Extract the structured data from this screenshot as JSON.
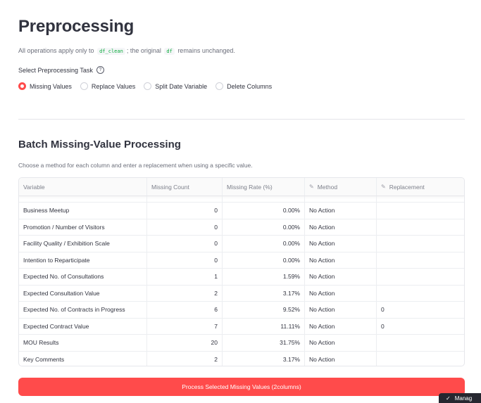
{
  "page": {
    "title": "Preprocessing",
    "caption_prefix": "All operations apply only to",
    "caption_code1": "df_clean",
    "caption_mid": "; the original",
    "caption_code2": "df",
    "caption_suffix": "remains unchanged."
  },
  "task_select": {
    "label": "Select Preprocessing Task",
    "help_icon": "question-circle-icon",
    "options": [
      "Missing Values",
      "Replace Values",
      "Split Date Variable",
      "Delete Columns"
    ],
    "selected": "Missing Values"
  },
  "batch": {
    "title": "Batch Missing-Value Processing",
    "caption": "Choose a method for each column and enter a replacement when using a specific value.",
    "columns": [
      "Variable",
      "Missing Count",
      "Missing Rate (%)",
      "Method",
      "Replacement"
    ],
    "editable_column_icon": "edit-icon",
    "rows": [
      {
        "variable": "Business Meetup",
        "missing_count": "0",
        "missing_rate": "0.00%",
        "method": "No Action",
        "replacement": ""
      },
      {
        "variable": "Promotion / Number of Visitors",
        "missing_count": "0",
        "missing_rate": "0.00%",
        "method": "No Action",
        "replacement": ""
      },
      {
        "variable": "Facility Quality / Exhibition Scale",
        "missing_count": "0",
        "missing_rate": "0.00%",
        "method": "No Action",
        "replacement": ""
      },
      {
        "variable": "Intention to Reparticipate",
        "missing_count": "0",
        "missing_rate": "0.00%",
        "method": "No Action",
        "replacement": ""
      },
      {
        "variable": "Expected No. of Consultations",
        "missing_count": "1",
        "missing_rate": "1.59%",
        "method": "No Action",
        "replacement": ""
      },
      {
        "variable": "Expected Consultation Value",
        "missing_count": "2",
        "missing_rate": "3.17%",
        "method": "No Action",
        "replacement": ""
      },
      {
        "variable": "Expected No. of Contracts in Progress",
        "missing_count": "6",
        "missing_rate": "9.52%",
        "method": "No Action",
        "replacement": "0"
      },
      {
        "variable": "Expected Contract Value",
        "missing_count": "7",
        "missing_rate": "11.11%",
        "method": "No Action",
        "replacement": "0"
      },
      {
        "variable": "MOU Results",
        "missing_count": "20",
        "missing_rate": "31.75%",
        "method": "No Action",
        "replacement": ""
      },
      {
        "variable": "Key Comments",
        "missing_count": "2",
        "missing_rate": "3.17%",
        "method": "No Action",
        "replacement": ""
      }
    ],
    "process_button": "Process Selected Missing Values (2columns)"
  },
  "toast": {
    "icon": "check-icon",
    "text": "Manag"
  },
  "colors": {
    "accent": "#ff4b4b",
    "text": "#31333f",
    "muted": "#6b6e7a",
    "code": "#09ab3b"
  }
}
